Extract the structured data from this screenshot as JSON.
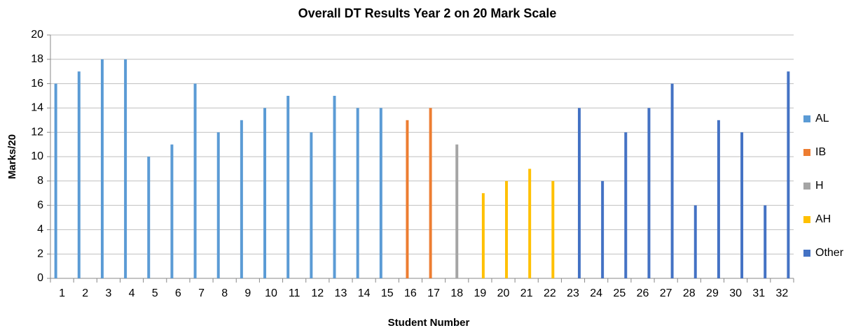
{
  "chart_data": {
    "type": "bar",
    "title": "Overall DT Results Year 2 on 20 Mark Scale",
    "x_label": "Student Number",
    "y_label": "Marks/20",
    "categories": [
      "1",
      "2",
      "3",
      "4",
      "5",
      "6",
      "7",
      "8",
      "9",
      "10",
      "11",
      "12",
      "13",
      "14",
      "15",
      "16",
      "17",
      "18",
      "19",
      "20",
      "21",
      "22",
      "23",
      "24",
      "25",
      "26",
      "27",
      "28",
      "29",
      "30",
      "31",
      "32"
    ],
    "series": [
      {
        "name": "AL",
        "color": "#5b9bd5",
        "values": [
          16,
          17,
          18,
          18,
          10,
          11,
          16,
          12,
          13,
          14,
          15,
          12,
          15,
          14,
          14,
          null,
          null,
          null,
          null,
          null,
          null,
          null,
          null,
          null,
          null,
          null,
          null,
          null,
          null,
          null,
          null,
          null
        ]
      },
      {
        "name": "IB",
        "color": "#ed7d31",
        "values": [
          null,
          null,
          null,
          null,
          null,
          null,
          null,
          null,
          null,
          null,
          null,
          null,
          null,
          null,
          null,
          13,
          14,
          null,
          null,
          null,
          null,
          null,
          null,
          null,
          null,
          null,
          null,
          null,
          null,
          null,
          null,
          null
        ]
      },
      {
        "name": "H",
        "color": "#a5a5a5",
        "values": [
          null,
          null,
          null,
          null,
          null,
          null,
          null,
          null,
          null,
          null,
          null,
          null,
          null,
          null,
          null,
          null,
          null,
          11,
          null,
          null,
          null,
          null,
          null,
          null,
          null,
          null,
          null,
          null,
          null,
          null,
          null,
          null
        ]
      },
      {
        "name": "AH",
        "color": "#ffc000",
        "values": [
          null,
          null,
          null,
          null,
          null,
          null,
          null,
          null,
          null,
          null,
          null,
          null,
          null,
          null,
          null,
          null,
          null,
          null,
          7,
          8,
          9,
          8,
          null,
          null,
          null,
          null,
          null,
          null,
          null,
          null,
          null,
          null
        ]
      },
      {
        "name": "Other",
        "color": "#4472c4",
        "values": [
          null,
          null,
          null,
          null,
          null,
          null,
          null,
          null,
          null,
          null,
          null,
          null,
          null,
          null,
          null,
          null,
          null,
          null,
          null,
          null,
          null,
          null,
          14,
          8,
          12,
          14,
          16,
          6,
          13,
          12,
          6,
          17
        ]
      }
    ],
    "ylim": [
      0,
      20
    ],
    "yticks": [
      0,
      2,
      4,
      6,
      8,
      10,
      12,
      14,
      16,
      18,
      20
    ],
    "grid": true,
    "legend": "right"
  }
}
